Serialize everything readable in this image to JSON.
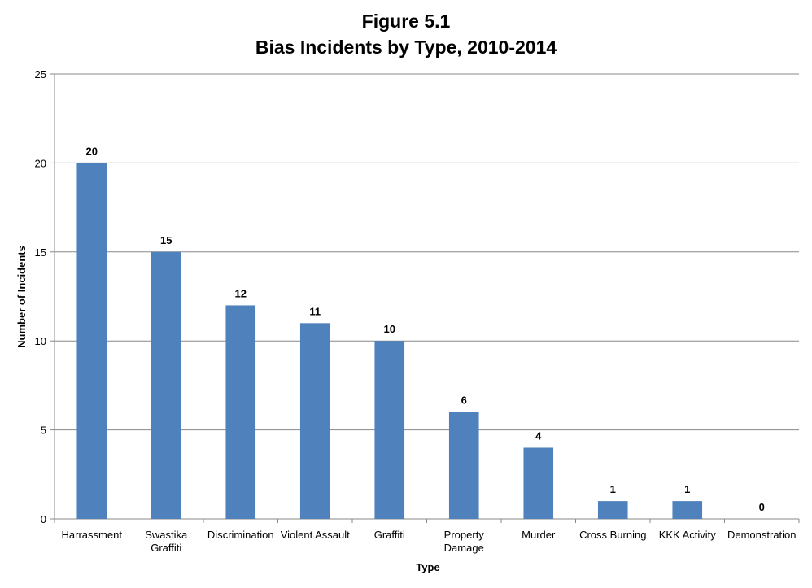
{
  "chart_data": {
    "type": "bar",
    "title": "Figure 5.1",
    "subtitle": "Bias Incidents by Type, 2010-2014",
    "xlabel": "Type",
    "ylabel": "Number of Incidents",
    "categories": [
      [
        "Harrassment"
      ],
      [
        "Swastika",
        "Graffiti"
      ],
      [
        "Discrimination"
      ],
      [
        "Violent Assault"
      ],
      [
        "Graffiti"
      ],
      [
        "Property",
        "Damage"
      ],
      [
        "Murder"
      ],
      [
        "Cross Burning"
      ],
      [
        "KKK Activity"
      ],
      [
        "Demonstration"
      ]
    ],
    "values": [
      20,
      15,
      12,
      11,
      10,
      6,
      4,
      1,
      1,
      0
    ],
    "ylim": [
      0,
      25
    ],
    "yticks": [
      0,
      5,
      10,
      15,
      20,
      25
    ],
    "grid": true,
    "legend": "none",
    "bar_color": "#4F81BD",
    "grid_color": "#888888"
  }
}
